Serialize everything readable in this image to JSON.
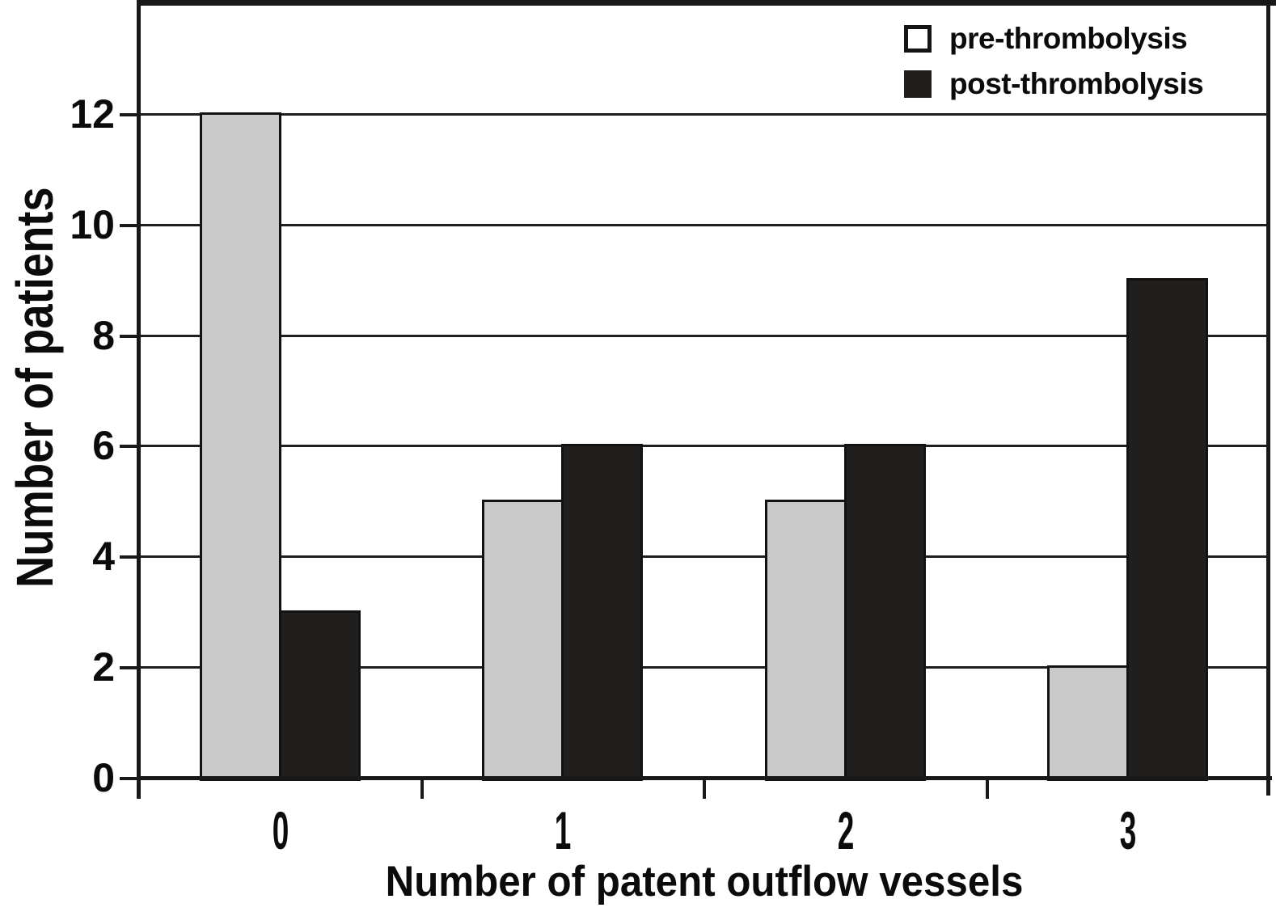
{
  "chart_data": {
    "type": "bar",
    "categories": [
      "0",
      "1",
      "2",
      "3"
    ],
    "series": [
      {
        "name": "pre-thrombolysis",
        "values": [
          12,
          5,
          5,
          2
        ],
        "color": "#c9c9ca",
        "legend_swatch_fill": "#ffffff"
      },
      {
        "name": "post-thrombolysis",
        "values": [
          3,
          6,
          6,
          9
        ],
        "color": "#211e1e",
        "legend_swatch_fill": "#211e1e"
      }
    ],
    "title": "",
    "xlabel": "Number of patent outflow vessels",
    "ylabel": "Number of patients",
    "ylim": [
      0,
      14
    ],
    "yticks": [
      0,
      2,
      4,
      6,
      8,
      10,
      12
    ],
    "grid": true,
    "legend_position": "top-right",
    "axis_color": "#1b1818",
    "text_color": "#0b0b0b"
  }
}
